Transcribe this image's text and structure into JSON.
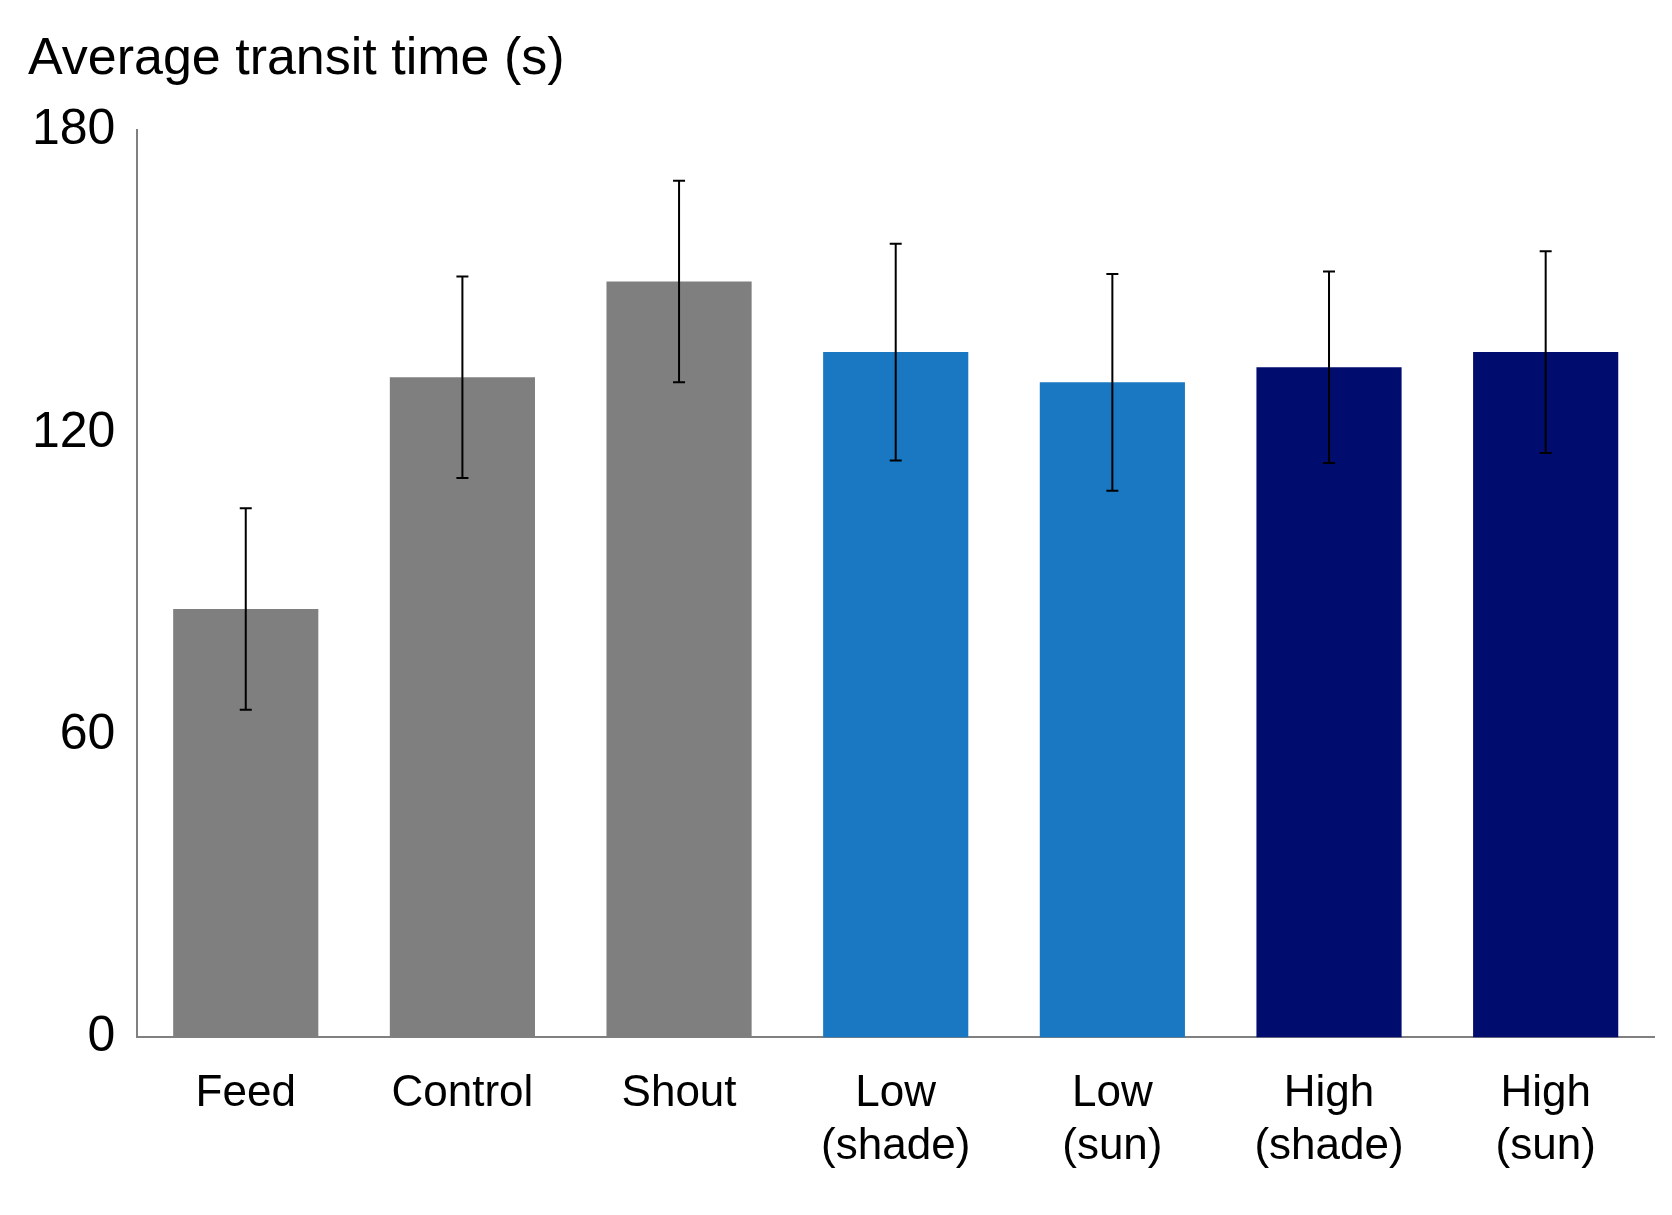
{
  "chart_data": {
    "type": "bar",
    "title": "Average transit time (s)",
    "categories": [
      "Feed",
      "Control",
      "Shout",
      "Low (shade)",
      "Low (sun)",
      "High (shade)",
      "High (sun)"
    ],
    "values": [
      85,
      131,
      150,
      136,
      130,
      133,
      136
    ],
    "colors": [
      "#7f7f7f",
      "#7f7f7f",
      "#7f7f7f",
      "#1a78c2",
      "#1a78c2",
      "#000c6e",
      "#000c6e"
    ],
    "errors": [
      20,
      20,
      20,
      21.5,
      21.5,
      19,
      20
    ],
    "ylim": [
      0,
      180
    ],
    "yticks": [
      0,
      60,
      120,
      180
    ],
    "grid": false,
    "legend": false
  }
}
